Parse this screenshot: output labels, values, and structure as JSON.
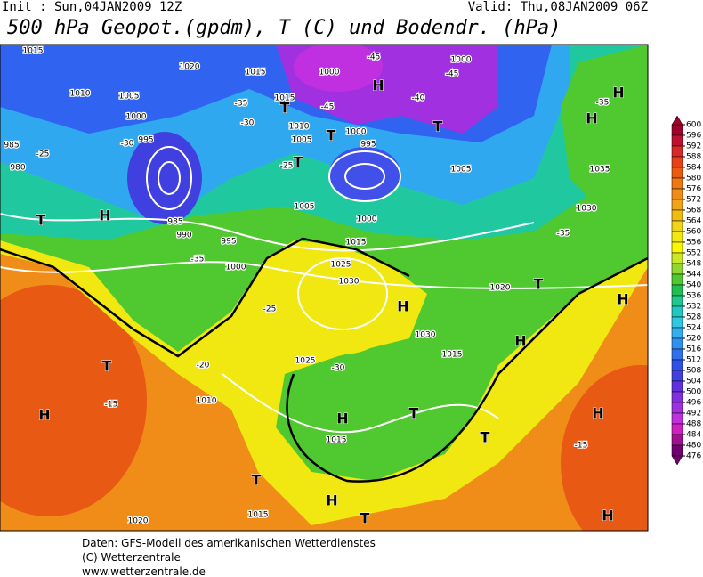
{
  "header": {
    "init": "Init : Sun,04JAN2009 12Z",
    "valid": "Valid: Thu,08JAN2009 06Z",
    "title": "500 hPa Geopot.(gpdm), T (C) und Bodendr. (hPa)"
  },
  "colorbar": {
    "ticks": [
      600,
      596,
      592,
      588,
      584,
      580,
      576,
      572,
      568,
      564,
      560,
      556,
      552,
      548,
      544,
      540,
      536,
      532,
      528,
      524,
      520,
      516,
      512,
      508,
      504,
      500,
      496,
      492,
      488,
      484,
      480,
      476
    ],
    "colors": [
      "#a0002a",
      "#c01030",
      "#d82828",
      "#e84018",
      "#ec5c10",
      "#f07810",
      "#f08c18",
      "#f0a418",
      "#f0bc10",
      "#f0d418",
      "#f0e810",
      "#f8f800",
      "#c8e828",
      "#90d830",
      "#50c830",
      "#20c050",
      "#20c890",
      "#20c8c0",
      "#30c8e0",
      "#30b0f0",
      "#3090f0",
      "#3070f0",
      "#3050e8",
      "#4040e0",
      "#6030e0",
      "#8030e0",
      "#a030e0",
      "#c030e0",
      "#d020c0",
      "#a01090",
      "#700070"
    ]
  },
  "map_labels": [
    "1015",
    "1020",
    "1015",
    "1000",
    "-45",
    "1000",
    "-45",
    "H",
    "1010",
    "1005",
    "1015",
    "T",
    "-35",
    "-45",
    "-40",
    "1000",
    "-30",
    "1010",
    "1005",
    "T",
    "1000",
    "T",
    "-35",
    "H",
    "H",
    "995",
    "-30",
    "995",
    "985",
    "-25",
    "T",
    "-25",
    "980",
    "1005",
    "1035",
    "985",
    "1005",
    "1000",
    "1030",
    "H",
    "T",
    "990",
    "995",
    "1015",
    "-35",
    "-35",
    "1000",
    "1025",
    "1030",
    "H",
    "-25",
    "T",
    "H",
    "H",
    "T",
    "1010",
    "1025",
    "-30",
    "1015",
    "T",
    "H",
    "T",
    "H",
    "T",
    "1015",
    "1020",
    "H",
    "T",
    "H",
    "1020",
    "1030",
    "H",
    "1015",
    "-15",
    "-20",
    "-15"
  ],
  "footer": [
    "Daten: GFS-Modell des amerikanischen Wetterdienstes",
    "(C) Wetterzentrale",
    "www.wetterzentrale.de"
  ]
}
